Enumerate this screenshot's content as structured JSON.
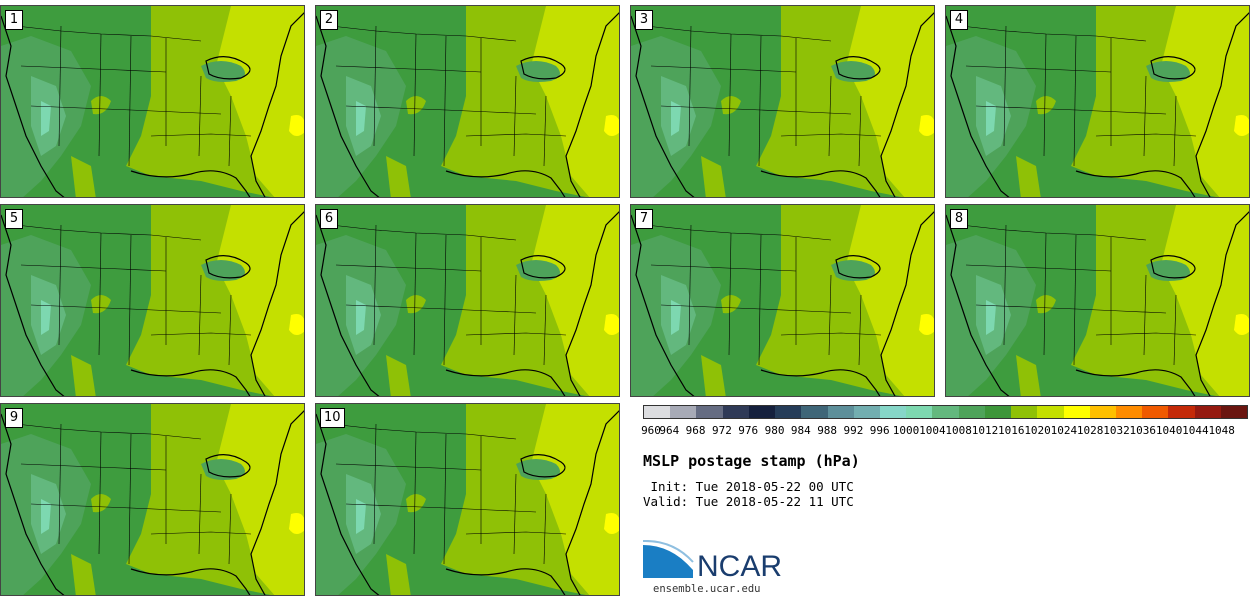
{
  "panels": [
    {
      "label": "1"
    },
    {
      "label": "2"
    },
    {
      "label": "3"
    },
    {
      "label": "4"
    },
    {
      "label": "5"
    },
    {
      "label": "6"
    },
    {
      "label": "7"
    },
    {
      "label": "8"
    },
    {
      "label": "9"
    },
    {
      "label": "10"
    }
  ],
  "colorbar": {
    "levels": [
      "960",
      "964",
      "968",
      "972",
      "976",
      "980",
      "984",
      "988",
      "992",
      "996",
      "1000",
      "1004",
      "1008",
      "1012",
      "1016",
      "1020",
      "1024",
      "1028",
      "1032",
      "1036",
      "1040",
      "1044",
      "1048"
    ],
    "colors": [
      "#dcdde0",
      "#a7aab6",
      "#656c82",
      "#2f3a57",
      "#15203d",
      "#253c58",
      "#3f6678",
      "#5d8f9a",
      "#72aeb0",
      "#86d6c8",
      "#7dd8b0",
      "#63b87e",
      "#4ea35a",
      "#3d963a",
      "#8fc106",
      "#c4e000",
      "#ffff00",
      "#ffc000",
      "#ff8c00",
      "#f05a00",
      "#c42a08",
      "#951a10",
      "#6a1510"
    ]
  },
  "title": "MSLP postage stamp (hPa)",
  "init": " Init: Tue 2018-05-22 00 UTC",
  "valid": "Valid: Tue 2018-05-22 11 UTC",
  "logo_text": "NCAR",
  "site": "ensemble.ucar.edu"
}
